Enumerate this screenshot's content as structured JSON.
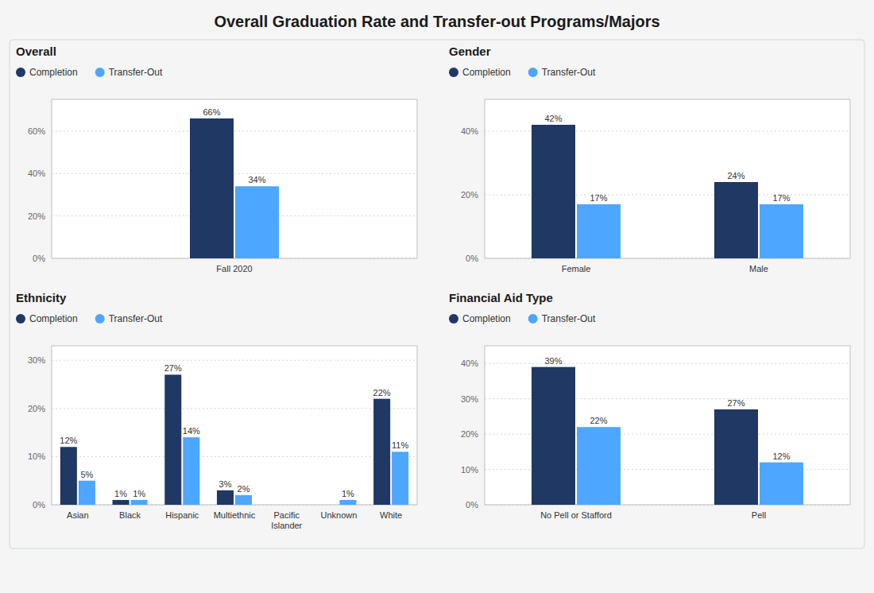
{
  "title": "Overall Graduation Rate and Transfer-out Programs/Majors",
  "chart_data": [
    {
      "type": "bar",
      "title": "Overall",
      "categories": [
        "Fall 2020"
      ],
      "series": [
        {
          "name": "Completion",
          "color": "#1f3864",
          "values": [
            66
          ],
          "value_labels": [
            "66%"
          ]
        },
        {
          "name": "Transfer-Out",
          "color": "#4da6ff",
          "values": [
            34
          ],
          "value_labels": [
            "34%"
          ]
        }
      ],
      "ylim": [
        0,
        75
      ],
      "yticks": [
        {
          "value": 0,
          "label": "0%"
        },
        {
          "value": 20,
          "label": "20%"
        },
        {
          "value": 40,
          "label": "40%"
        },
        {
          "value": 60,
          "label": "60%"
        }
      ],
      "grid": true,
      "data_labels": true
    },
    {
      "type": "bar",
      "title": "Gender",
      "categories": [
        "Female",
        "Male"
      ],
      "series": [
        {
          "name": "Completion",
          "color": "#1f3864",
          "values": [
            42,
            24
          ],
          "value_labels": [
            "42%",
            "24%"
          ]
        },
        {
          "name": "Transfer-Out",
          "color": "#4da6ff",
          "values": [
            17,
            17
          ],
          "value_labels": [
            "17%",
            "17%"
          ]
        }
      ],
      "ylim": [
        0,
        50
      ],
      "yticks": [
        {
          "value": 0,
          "label": "0%"
        },
        {
          "value": 20,
          "label": "20%"
        },
        {
          "value": 40,
          "label": "40%"
        }
      ],
      "grid": true,
      "data_labels": true
    },
    {
      "type": "bar",
      "title": "Ethnicity",
      "categories": [
        "Asian",
        "Black",
        "Hispanic",
        "Multiethnic",
        "Pacific\nIslander",
        "Unknown",
        "White"
      ],
      "series": [
        {
          "name": "Completion",
          "color": "#1f3864",
          "values": [
            12,
            1,
            27,
            3,
            0,
            0,
            22
          ],
          "value_labels": [
            "12%",
            "1%",
            "27%",
            "3%",
            null,
            null,
            "22%"
          ]
        },
        {
          "name": "Transfer-Out",
          "color": "#4da6ff",
          "values": [
            5,
            1,
            14,
            2,
            0,
            1,
            11
          ],
          "value_labels": [
            "5%",
            "1%",
            "14%",
            "2%",
            null,
            "1%",
            "11%"
          ]
        }
      ],
      "ylim": [
        0,
        33
      ],
      "yticks": [
        {
          "value": 0,
          "label": "0%"
        },
        {
          "value": 10,
          "label": "10%"
        },
        {
          "value": 20,
          "label": "20%"
        },
        {
          "value": 30,
          "label": "30%"
        }
      ],
      "grid": true,
      "data_labels": true
    },
    {
      "type": "bar",
      "title": "Financial Aid Type",
      "categories": [
        "No Pell or Stafford",
        "Pell"
      ],
      "series": [
        {
          "name": "Completion",
          "color": "#1f3864",
          "values": [
            39,
            27
          ],
          "value_labels": [
            "39%",
            "27%"
          ]
        },
        {
          "name": "Transfer-Out",
          "color": "#4da6ff",
          "values": [
            22,
            12
          ],
          "value_labels": [
            "22%",
            "12%"
          ]
        }
      ],
      "ylim": [
        0,
        45
      ],
      "yticks": [
        {
          "value": 0,
          "label": "0%"
        },
        {
          "value": 10,
          "label": "10%"
        },
        {
          "value": 20,
          "label": "20%"
        },
        {
          "value": 30,
          "label": "30%"
        },
        {
          "value": 40,
          "label": "40%"
        }
      ],
      "grid": true,
      "data_labels": true
    }
  ]
}
